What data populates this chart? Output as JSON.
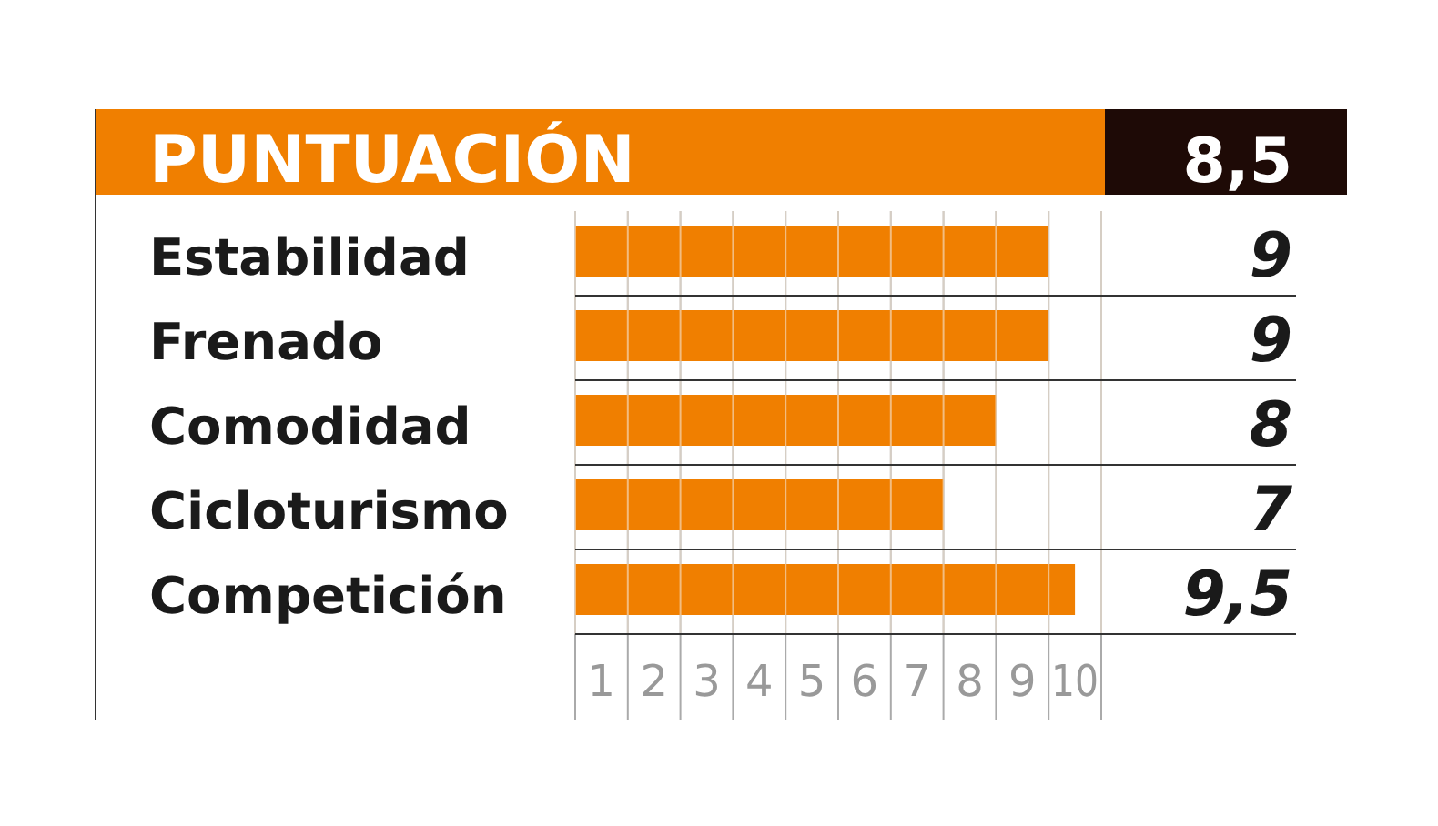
{
  "chart_data": {
    "type": "bar",
    "orientation": "horizontal",
    "title": "PUNTUACIÓN",
    "annotations": [
      "8,5"
    ],
    "categories": [
      "Estabilidad",
      "Frenado",
      "Comodidad",
      "Cicloturismo",
      "Competición"
    ],
    "values": [
      9,
      9,
      8,
      7,
      9.5
    ],
    "value_labels": [
      "9",
      "9",
      "8",
      "7",
      "9,5"
    ],
    "color": "#f07f00",
    "xlim": [
      0,
      10
    ],
    "xticks": [
      {
        "value": 0.5,
        "label": "1"
      },
      {
        "value": 1.5,
        "label": "2"
      },
      {
        "value": 2.5,
        "label": "3"
      },
      {
        "value": 3.5,
        "label": "4"
      },
      {
        "value": 4.5,
        "label": "5"
      },
      {
        "value": 5.5,
        "label": "6"
      },
      {
        "value": 6.5,
        "label": "7"
      },
      {
        "value": 7.5,
        "label": "8"
      },
      {
        "value": 8.5,
        "label": "9"
      },
      {
        "value": 9.5,
        "label": "10"
      }
    ],
    "grid": true
  }
}
